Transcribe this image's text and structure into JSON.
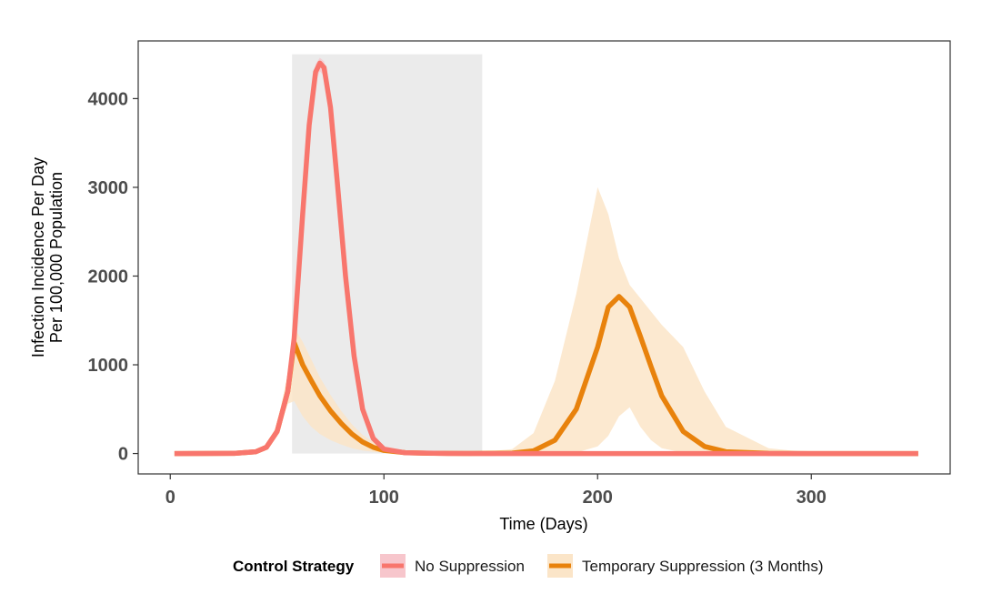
{
  "chart_data": {
    "type": "line",
    "title": "",
    "xlabel": "Time (Days)",
    "ylabel_line1": "Infection Incidence Per Day",
    "ylabel_line2": "Per 100,000 Population",
    "xlim": [
      -15,
      365
    ],
    "ylim": [
      -230,
      4650
    ],
    "x_ticks": [
      0,
      100,
      200,
      300
    ],
    "x_tick_labels": [
      "0",
      "100",
      "200",
      "300"
    ],
    "y_ticks": [
      0,
      1000,
      2000,
      3000,
      4000
    ],
    "y_tick_labels": [
      "0",
      "1000",
      "2000",
      "3000",
      "4000"
    ],
    "grid": false,
    "shaded_period": {
      "x_start": 57,
      "x_end": 146,
      "y_top": 4500,
      "color": "#ebebeb"
    },
    "legend": {
      "title": "Control Strategy",
      "position": "bottom"
    },
    "series": [
      {
        "name": "No Suppression",
        "color": "#f8766d",
        "band_color": "#f7c6cc",
        "x": [
          2,
          30,
          40,
          45,
          50,
          55,
          58,
          62,
          65,
          68,
          70,
          72,
          75,
          78,
          82,
          86,
          90,
          95,
          100,
          110,
          130,
          150,
          200,
          250,
          300,
          350
        ],
        "y": [
          0,
          2,
          20,
          70,
          250,
          700,
          1300,
          2700,
          3700,
          4300,
          4400,
          4350,
          3900,
          3100,
          2000,
          1100,
          500,
          170,
          50,
          8,
          1,
          0,
          0,
          0,
          0,
          0
        ],
        "lower": [
          0,
          1,
          15,
          55,
          210,
          620,
          1180,
          2550,
          3580,
          4200,
          4310,
          4250,
          3780,
          2960,
          1880,
          1020,
          450,
          150,
          40,
          5,
          0,
          0,
          0,
          0,
          0,
          0
        ],
        "upper": [
          0,
          3,
          25,
          85,
          290,
          780,
          1420,
          2850,
          3820,
          4390,
          4460,
          4420,
          4020,
          3240,
          2120,
          1180,
          560,
          200,
          60,
          12,
          2,
          0,
          0,
          0,
          0,
          0
        ]
      },
      {
        "name": "Temporary Suppression (3 Months)",
        "color": "#e8820c",
        "band_color": "#fbe5c8",
        "x": [
          2,
          30,
          40,
          45,
          50,
          55,
          58,
          62,
          66,
          70,
          75,
          80,
          85,
          90,
          95,
          100,
          110,
          120,
          140,
          160,
          170,
          180,
          190,
          200,
          205,
          210,
          215,
          220,
          225,
          230,
          240,
          250,
          260,
          280,
          300,
          350
        ],
        "y": [
          0,
          2,
          20,
          70,
          250,
          700,
          1250,
          1000,
          820,
          650,
          480,
          340,
          220,
          130,
          70,
          35,
          10,
          3,
          1,
          5,
          30,
          150,
          500,
          1200,
          1650,
          1770,
          1650,
          1320,
          980,
          650,
          250,
          80,
          20,
          2,
          0,
          0
        ],
        "lower": [
          0,
          1,
          15,
          55,
          200,
          560,
          590,
          420,
          300,
          220,
          150,
          100,
          60,
          35,
          18,
          8,
          2,
          0,
          0,
          0,
          0,
          2,
          10,
          80,
          200,
          420,
          520,
          300,
          150,
          60,
          10,
          2,
          0,
          0,
          0,
          0
        ],
        "upper": [
          0,
          3,
          25,
          90,
          320,
          900,
          1420,
          1260,
          1060,
          860,
          660,
          480,
          330,
          210,
          130,
          70,
          25,
          8,
          4,
          50,
          230,
          820,
          1800,
          3000,
          2700,
          2200,
          1900,
          1750,
          1600,
          1450,
          1200,
          700,
          300,
          60,
          10,
          0
        ]
      }
    ]
  }
}
